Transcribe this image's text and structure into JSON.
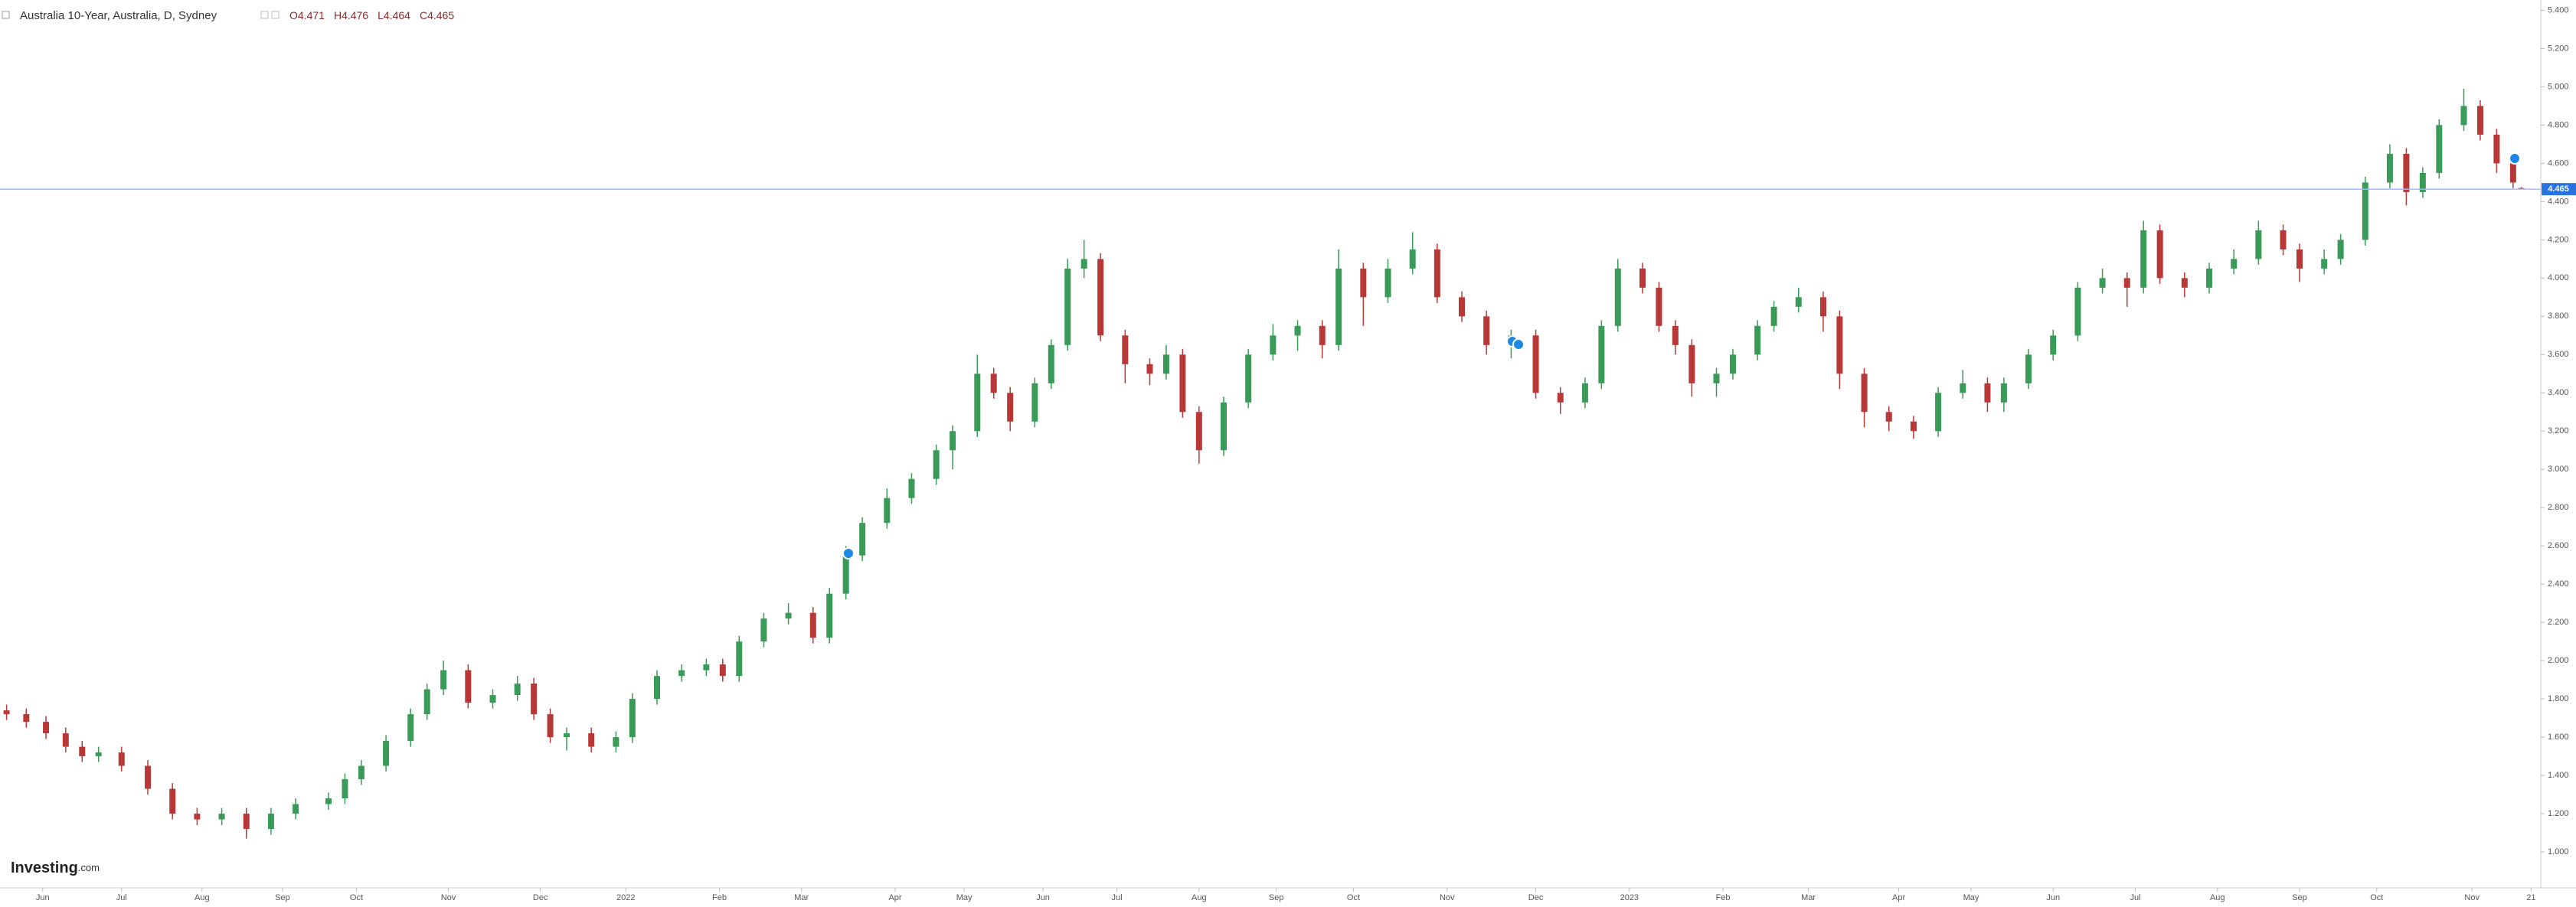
{
  "header": {
    "title": "Australia 10-Year, Australia, D, Sydney",
    "ohlc_labels": [
      "O",
      "H",
      "L",
      "C"
    ]
  },
  "brand": [
    "Investing",
    ".com"
  ],
  "chart_data": {
    "type": "candlestick",
    "up_color": "#3a9a58",
    "down_color": "#b83838",
    "price_line_color": "#9dbcf2",
    "price_label_color": "#2a72e0",
    "xlim": [
      0,
      1545
    ],
    "ylim": [
      0.812,
      5.454
    ],
    "yticks": [
      {
        "value": 1.0,
        "label": "1.000"
      },
      {
        "value": 1.2,
        "label": "1.200"
      },
      {
        "value": 1.4,
        "label": "1.400"
      },
      {
        "value": 1.6,
        "label": "1.600"
      },
      {
        "value": 1.8,
        "label": "1.800"
      },
      {
        "value": 2.0,
        "label": "2.000"
      },
      {
        "value": 2.2,
        "label": "2.200"
      },
      {
        "value": 2.4,
        "label": "2.400"
      },
      {
        "value": 2.6,
        "label": "2.600"
      },
      {
        "value": 2.8,
        "label": "2.800"
      },
      {
        "value": 3.0,
        "label": "3.000"
      },
      {
        "value": 3.2,
        "label": "3.200"
      },
      {
        "value": 3.4,
        "label": "3.400"
      },
      {
        "value": 3.6,
        "label": "3.600"
      },
      {
        "value": 3.8,
        "label": "3.800"
      },
      {
        "value": 4.0,
        "label": "4.000"
      },
      {
        "value": 4.2,
        "label": "4.200"
      },
      {
        "value": 4.4,
        "label": "4.400"
      },
      {
        "value": 4.6,
        "label": "4.600"
      },
      {
        "value": 4.8,
        "label": "4.800"
      },
      {
        "value": 5.0,
        "label": "5.000"
      },
      {
        "value": 5.2,
        "label": "5.200"
      },
      {
        "value": 5.4,
        "label": "5.400"
      }
    ],
    "xticks": [
      {
        "value": 26,
        "label": "Jun"
      },
      {
        "value": 74,
        "label": "Jul"
      },
      {
        "value": 123,
        "label": "Aug"
      },
      {
        "value": 172,
        "label": "Sep"
      },
      {
        "value": 217,
        "label": "Oct"
      },
      {
        "value": 273,
        "label": "Nov"
      },
      {
        "value": 329,
        "label": "Dec"
      },
      {
        "value": 381,
        "label": "2022"
      },
      {
        "value": 438,
        "label": "Feb"
      },
      {
        "value": 488,
        "label": "Mar"
      },
      {
        "value": 545,
        "label": "Apr"
      },
      {
        "value": 587,
        "label": "May"
      },
      {
        "value": 635,
        "label": "Jun"
      },
      {
        "value": 680,
        "label": "Jul"
      },
      {
        "value": 730,
        "label": "Aug"
      },
      {
        "value": 777,
        "label": "Sep"
      },
      {
        "value": 824,
        "label": "Oct"
      },
      {
        "value": 881,
        "label": "Nov"
      },
      {
        "value": 935,
        "label": "Dec"
      },
      {
        "value": 992,
        "label": "2023"
      },
      {
        "value": 1049,
        "label": "Feb"
      },
      {
        "value": 1101,
        "label": "Mar"
      },
      {
        "value": 1156,
        "label": "Apr"
      },
      {
        "value": 1200,
        "label": "May"
      },
      {
        "value": 1250,
        "label": "Jun"
      },
      {
        "value": 1300,
        "label": "Jul"
      },
      {
        "value": 1350,
        "label": "Aug"
      },
      {
        "value": 1400,
        "label": "Sep"
      },
      {
        "value": 1447,
        "label": "Oct"
      },
      {
        "value": 1505,
        "label": "Nov"
      },
      {
        "value": 1541,
        "label": "21"
      }
    ],
    "x": [
      4,
      16,
      28,
      40,
      50,
      60,
      74,
      90,
      105,
      120,
      135,
      150,
      165,
      180,
      200,
      210,
      220,
      235,
      250,
      260,
      270,
      285,
      300,
      315,
      325,
      335,
      345,
      360,
      375,
      385,
      400,
      415,
      430,
      440,
      450,
      465,
      480,
      495,
      505,
      515,
      525,
      540,
      555,
      570,
      580,
      595,
      605,
      615,
      630,
      640,
      650,
      660,
      670,
      685,
      700,
      710,
      720,
      730,
      745,
      760,
      775,
      790,
      805,
      815,
      830,
      845,
      860,
      875,
      890,
      905,
      920,
      935,
      950,
      965,
      975,
      985,
      1000,
      1010,
      1020,
      1030,
      1045,
      1055,
      1070,
      1080,
      1095,
      1110,
      1120,
      1135,
      1150,
      1165,
      1180,
      1195,
      1210,
      1220,
      1235,
      1250,
      1265,
      1280,
      1295,
      1305,
      1315,
      1330,
      1345,
      1360,
      1375,
      1390,
      1400,
      1415,
      1425,
      1440,
      1455,
      1465,
      1475,
      1485,
      1500,
      1510,
      1520,
      1530,
      1535
    ],
    "ohlc": [
      [
        1.74,
        1.77,
        1.69,
        1.72
      ],
      [
        1.72,
        1.75,
        1.65,
        1.68
      ],
      [
        1.68,
        1.71,
        1.59,
        1.62
      ],
      [
        1.62,
        1.65,
        1.52,
        1.55
      ],
      [
        1.55,
        1.58,
        1.47,
        1.5
      ],
      [
        1.5,
        1.55,
        1.47,
        1.52
      ],
      [
        1.52,
        1.55,
        1.42,
        1.45
      ],
      [
        1.45,
        1.48,
        1.3,
        1.33
      ],
      [
        1.33,
        1.36,
        1.17,
        1.2
      ],
      [
        1.2,
        1.23,
        1.14,
        1.17
      ],
      [
        1.17,
        1.23,
        1.14,
        1.2
      ],
      [
        1.2,
        1.23,
        1.07,
        1.12
      ],
      [
        1.12,
        1.23,
        1.09,
        1.2
      ],
      [
        1.2,
        1.28,
        1.17,
        1.25
      ],
      [
        1.25,
        1.31,
        1.22,
        1.28
      ],
      [
        1.28,
        1.41,
        1.25,
        1.38
      ],
      [
        1.38,
        1.48,
        1.35,
        1.45
      ],
      [
        1.45,
        1.61,
        1.42,
        1.58
      ],
      [
        1.58,
        1.75,
        1.55,
        1.72
      ],
      [
        1.72,
        1.88,
        1.69,
        1.85
      ],
      [
        1.85,
        2.0,
        1.82,
        1.95
      ],
      [
        1.95,
        1.98,
        1.75,
        1.78
      ],
      [
        1.78,
        1.85,
        1.75,
        1.82
      ],
      [
        1.82,
        1.92,
        1.79,
        1.88
      ],
      [
        1.88,
        1.91,
        1.69,
        1.72
      ],
      [
        1.72,
        1.75,
        1.57,
        1.6
      ],
      [
        1.6,
        1.65,
        1.53,
        1.62
      ],
      [
        1.62,
        1.65,
        1.52,
        1.55
      ],
      [
        1.55,
        1.63,
        1.52,
        1.6
      ],
      [
        1.6,
        1.83,
        1.57,
        1.8
      ],
      [
        1.8,
        1.95,
        1.77,
        1.92
      ],
      [
        1.92,
        1.98,
        1.89,
        1.95
      ],
      [
        1.95,
        2.01,
        1.92,
        1.98
      ],
      [
        1.98,
        2.01,
        1.89,
        1.92
      ],
      [
        1.92,
        2.13,
        1.89,
        2.1
      ],
      [
        2.1,
        2.25,
        2.07,
        2.22
      ],
      [
        2.22,
        2.3,
        2.19,
        2.25
      ],
      [
        2.25,
        2.28,
        2.09,
        2.12
      ],
      [
        2.12,
        2.38,
        2.09,
        2.35
      ],
      [
        2.35,
        2.6,
        2.32,
        2.55
      ],
      [
        2.55,
        2.75,
        2.52,
        2.72
      ],
      [
        2.72,
        2.9,
        2.69,
        2.85
      ],
      [
        2.85,
        2.98,
        2.82,
        2.95
      ],
      [
        2.95,
        3.13,
        2.92,
        3.1
      ],
      [
        3.1,
        3.23,
        3.0,
        3.2
      ],
      [
        3.2,
        3.6,
        3.17,
        3.5
      ],
      [
        3.5,
        3.53,
        3.37,
        3.4
      ],
      [
        3.4,
        3.43,
        3.2,
        3.25
      ],
      [
        3.25,
        3.48,
        3.22,
        3.45
      ],
      [
        3.45,
        3.68,
        3.42,
        3.65
      ],
      [
        3.65,
        4.1,
        3.62,
        4.05
      ],
      [
        4.05,
        4.2,
        4.0,
        4.1
      ],
      [
        4.1,
        4.13,
        3.67,
        3.7
      ],
      [
        3.7,
        3.73,
        3.45,
        3.55
      ],
      [
        3.55,
        3.58,
        3.44,
        3.5
      ],
      [
        3.5,
        3.65,
        3.47,
        3.6
      ],
      [
        3.6,
        3.63,
        3.27,
        3.3
      ],
      [
        3.3,
        3.33,
        3.03,
        3.1
      ],
      [
        3.1,
        3.38,
        3.07,
        3.35
      ],
      [
        3.35,
        3.63,
        3.32,
        3.6
      ],
      [
        3.6,
        3.76,
        3.57,
        3.7
      ],
      [
        3.7,
        3.78,
        3.62,
        3.75
      ],
      [
        3.75,
        3.78,
        3.58,
        3.65
      ],
      [
        3.65,
        4.15,
        3.62,
        4.05
      ],
      [
        4.05,
        4.08,
        3.75,
        3.9
      ],
      [
        3.9,
        4.1,
        3.87,
        4.05
      ],
      [
        4.05,
        4.24,
        4.02,
        4.15
      ],
      [
        4.15,
        4.18,
        3.87,
        3.9
      ],
      [
        3.9,
        3.93,
        3.77,
        3.8
      ],
      [
        3.8,
        3.83,
        3.6,
        3.65
      ],
      [
        3.65,
        3.73,
        3.58,
        3.7
      ],
      [
        3.7,
        3.73,
        3.37,
        3.4
      ],
      [
        3.4,
        3.43,
        3.29,
        3.35
      ],
      [
        3.35,
        3.48,
        3.32,
        3.45
      ],
      [
        3.45,
        3.78,
        3.42,
        3.75
      ],
      [
        3.75,
        4.1,
        3.72,
        4.05
      ],
      [
        4.05,
        4.08,
        3.92,
        3.95
      ],
      [
        3.95,
        3.98,
        3.72,
        3.75
      ],
      [
        3.75,
        3.78,
        3.6,
        3.65
      ],
      [
        3.65,
        3.68,
        3.38,
        3.45
      ],
      [
        3.45,
        3.53,
        3.38,
        3.5
      ],
      [
        3.5,
        3.63,
        3.47,
        3.6
      ],
      [
        3.6,
        3.78,
        3.57,
        3.75
      ],
      [
        3.75,
        3.88,
        3.72,
        3.85
      ],
      [
        3.85,
        3.95,
        3.82,
        3.9
      ],
      [
        3.9,
        3.93,
        3.72,
        3.8
      ],
      [
        3.8,
        3.83,
        3.42,
        3.5
      ],
      [
        3.5,
        3.53,
        3.22,
        3.3
      ],
      [
        3.3,
        3.33,
        3.2,
        3.25
      ],
      [
        3.25,
        3.28,
        3.16,
        3.2
      ],
      [
        3.2,
        3.43,
        3.17,
        3.4
      ],
      [
        3.4,
        3.52,
        3.37,
        3.45
      ],
      [
        3.45,
        3.48,
        3.3,
        3.35
      ],
      [
        3.35,
        3.48,
        3.3,
        3.45
      ],
      [
        3.45,
        3.63,
        3.42,
        3.6
      ],
      [
        3.6,
        3.73,
        3.57,
        3.7
      ],
      [
        3.7,
        3.98,
        3.67,
        3.95
      ],
      [
        3.95,
        4.05,
        3.92,
        4.0
      ],
      [
        4.0,
        4.03,
        3.85,
        3.95
      ],
      [
        3.95,
        4.3,
        3.92,
        4.25
      ],
      [
        4.25,
        4.28,
        3.97,
        4.0
      ],
      [
        4.0,
        4.03,
        3.9,
        3.95
      ],
      [
        3.95,
        4.08,
        3.92,
        4.05
      ],
      [
        4.05,
        4.15,
        4.02,
        4.1
      ],
      [
        4.1,
        4.3,
        4.07,
        4.25
      ],
      [
        4.25,
        4.28,
        4.12,
        4.15
      ],
      [
        4.15,
        4.18,
        3.98,
        4.05
      ],
      [
        4.05,
        4.15,
        4.02,
        4.1
      ],
      [
        4.1,
        4.23,
        4.07,
        4.2
      ],
      [
        4.2,
        4.53,
        4.17,
        4.5
      ],
      [
        4.5,
        4.7,
        4.47,
        4.65
      ],
      [
        4.65,
        4.68,
        4.38,
        4.45
      ],
      [
        4.45,
        4.58,
        4.42,
        4.55
      ],
      [
        4.55,
        4.83,
        4.52,
        4.8
      ],
      [
        4.8,
        4.99,
        4.77,
        4.9
      ],
      [
        4.9,
        4.93,
        4.72,
        4.75
      ],
      [
        4.75,
        4.78,
        4.55,
        4.6
      ],
      [
        4.6,
        4.65,
        4.47,
        4.5
      ],
      [
        4.471,
        4.476,
        4.464,
        4.465
      ]
    ]
  }
}
